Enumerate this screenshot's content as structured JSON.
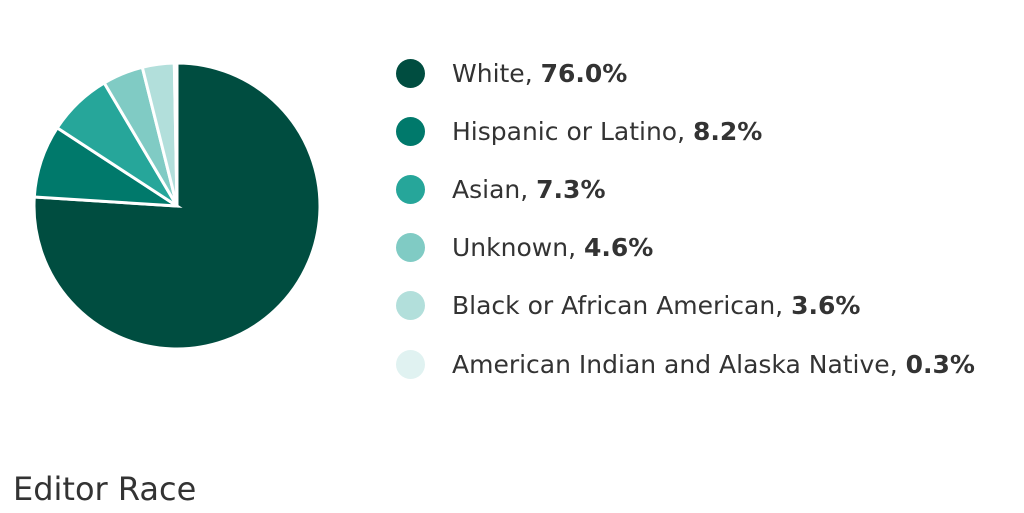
{
  "chart_data": {
    "type": "pie",
    "title": "Editor Race",
    "legend_position": "right",
    "slices": [
      {
        "label": "White",
        "value": 76.0,
        "display": "76.0%",
        "color": "#004d40"
      },
      {
        "label": "Hispanic or Latino",
        "value": 8.2,
        "display": "8.2%",
        "color": "#00796b"
      },
      {
        "label": "Asian",
        "value": 7.3,
        "display": "7.3%",
        "color": "#26a69a"
      },
      {
        "label": "Unknown",
        "value": 4.6,
        "display": "4.6%",
        "color": "#80cbc4"
      },
      {
        "label": "Black or African American",
        "value": 3.6,
        "display": "3.6%",
        "color": "#b2dfdb"
      },
      {
        "label": "American Indian and Alaska Native",
        "value": 0.3,
        "display": "0.3%",
        "color": "#e0f2f1"
      }
    ]
  }
}
